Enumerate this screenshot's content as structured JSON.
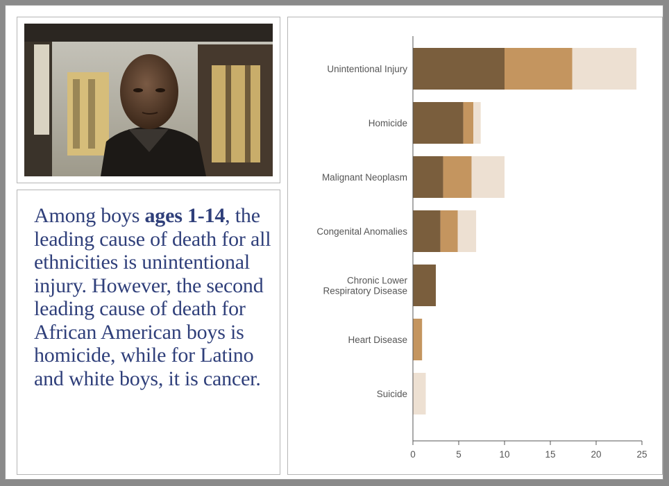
{
  "caption": {
    "part1": "Among boys ",
    "bold": "ages 1-14",
    "part2": ", the leading cause of death for all ethnicities is unintentional injury. However, the second leading cause of death for African American boys is homicide, while for Latino and white boys, it is cancer."
  },
  "colors": {
    "caption_text": "#2f3f7a",
    "series_dark": "#7a5e3d",
    "series_mid": "#c4955f",
    "series_light": "#ede0d2",
    "axis": "#555555"
  },
  "chart_data": {
    "type": "bar",
    "orientation": "horizontal",
    "stacked": true,
    "categories": [
      [
        "Unintentional Injury"
      ],
      [
        "Homicide"
      ],
      [
        "Malignant Neoplasm"
      ],
      [
        "Congenital Anomalies"
      ],
      [
        "Chronic Lower",
        "Respiratory Disease"
      ],
      [
        "Heart Disease"
      ],
      [
        "Suicide"
      ]
    ],
    "series": [
      {
        "color": "#7a5e3d",
        "values": [
          10.0,
          5.5,
          3.3,
          3.0,
          2.5,
          0,
          0
        ]
      },
      {
        "color": "#c4955f",
        "values": [
          7.4,
          1.1,
          3.1,
          1.9,
          0,
          1.0,
          0
        ]
      },
      {
        "color": "#ede0d2",
        "values": [
          7.0,
          0.8,
          3.6,
          2.0,
          0,
          0,
          1.4
        ]
      }
    ],
    "xlim": [
      0,
      25
    ],
    "xticks": [
      0,
      5,
      10,
      15,
      20,
      25
    ],
    "xlabel": "",
    "ylabel": "",
    "title": "",
    "grid": false,
    "legend": "none"
  }
}
